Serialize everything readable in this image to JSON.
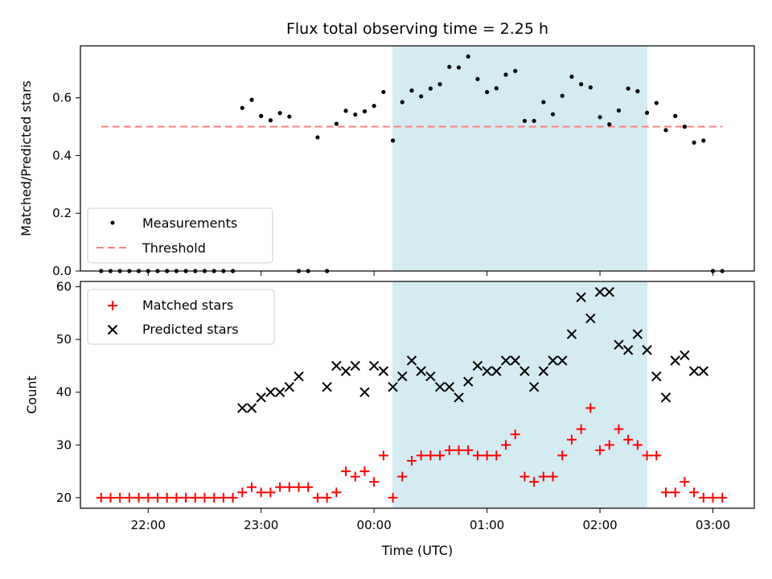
{
  "title": "Flux total observing time = 2.25 h",
  "colors": {
    "shade": "#add8e6",
    "measurements": "#000000",
    "threshold": "#ff7f7f",
    "matched": "#ff0000",
    "predicted": "#000000"
  },
  "chart_data": [
    {
      "type": "scatter",
      "panel": "top",
      "ylabel": "Matched/Predicted stars",
      "xlim": [
        "21:24",
        "03:22"
      ],
      "ylim": [
        0,
        0.78
      ],
      "yticks": [
        "0.0",
        "0.2",
        "0.4",
        "0.6"
      ],
      "shaded_span": [
        "00:10",
        "02:25"
      ],
      "legend": {
        "placement": "lower-left",
        "entries": [
          "Measurements",
          "Threshold"
        ]
      },
      "threshold": {
        "name": "Threshold",
        "value": 0.5,
        "x_range": [
          "21:35",
          "03:05"
        ]
      },
      "series": [
        {
          "name": "Measurements",
          "x": [
            "21:35",
            "21:40",
            "21:45",
            "21:50",
            "21:55",
            "22:00",
            "22:05",
            "22:10",
            "22:15",
            "22:20",
            "22:25",
            "22:30",
            "22:35",
            "22:40",
            "22:45",
            "22:50",
            "22:55",
            "23:00",
            "23:05",
            "23:10",
            "23:15",
            "23:20",
            "23:25",
            "23:30",
            "23:35",
            "23:40",
            "23:45",
            "23:50",
            "23:55",
            "24:00",
            "24:05",
            "24:10",
            "24:15",
            "24:20",
            "24:25",
            "24:30",
            "24:35",
            "24:40",
            "24:45",
            "24:50",
            "24:55",
            "25:00",
            "25:05",
            "25:10",
            "25:15",
            "25:20",
            "25:25",
            "25:30",
            "25:35",
            "25:40",
            "25:45",
            "25:50",
            "25:55",
            "26:00",
            "26:05",
            "26:10",
            "26:15",
            "26:20",
            "26:25",
            "26:30",
            "26:35",
            "26:40",
            "26:45",
            "26:50",
            "26:55",
            "27:00",
            "27:05"
          ],
          "y": [
            0,
            0,
            0,
            0,
            0,
            0,
            0,
            0,
            0,
            0,
            0,
            0,
            0,
            0,
            0,
            0.565,
            0.593,
            0.537,
            0.522,
            0.547,
            0.535,
            0,
            0,
            0.463,
            0,
            0.51,
            0.555,
            0.542,
            0.553,
            0.572,
            0.62,
            0.452,
            0.585,
            0.625,
            0.605,
            0.632,
            0.647,
            0.707,
            0.705,
            0.743,
            0.665,
            0.62,
            0.633,
            0.68,
            0.693,
            0.52,
            0.52,
            0.585,
            0.543,
            0.607,
            0.673,
            0.647,
            0.636,
            0.533,
            0.508,
            0.556,
            0.632,
            0.623,
            0.548,
            0.582,
            0.488,
            0.537,
            0.5,
            0.445,
            0.452,
            0,
            0
          ]
        }
      ]
    },
    {
      "type": "scatter",
      "panel": "bottom",
      "xlabel": "Time (UTC)",
      "ylabel": "Count",
      "xlim": [
        "21:24",
        "03:22"
      ],
      "ylim": [
        18,
        61
      ],
      "xticks": [
        "22:00",
        "23:00",
        "00:00",
        "01:00",
        "02:00",
        "03:00"
      ],
      "yticks": [
        "20",
        "30",
        "40",
        "50",
        "60"
      ],
      "shaded_span": [
        "00:10",
        "02:25"
      ],
      "legend": {
        "placement": "upper-left",
        "entries": [
          "Matched stars",
          "Predicted stars"
        ]
      },
      "series": [
        {
          "name": "Matched stars",
          "x": [
            "21:35",
            "21:40",
            "21:45",
            "21:50",
            "21:55",
            "22:00",
            "22:05",
            "22:10",
            "22:15",
            "22:20",
            "22:25",
            "22:30",
            "22:35",
            "22:40",
            "22:45",
            "22:50",
            "22:55",
            "23:00",
            "23:05",
            "23:10",
            "23:15",
            "23:20",
            "23:25",
            "23:30",
            "23:35",
            "23:40",
            "23:45",
            "23:50",
            "23:55",
            "24:00",
            "24:05",
            "24:10",
            "24:15",
            "24:20",
            "24:25",
            "24:30",
            "24:35",
            "24:40",
            "24:45",
            "24:50",
            "24:55",
            "25:00",
            "25:05",
            "25:10",
            "25:15",
            "25:20",
            "25:25",
            "25:30",
            "25:35",
            "25:40",
            "25:45",
            "25:50",
            "25:55",
            "26:00",
            "26:05",
            "26:10",
            "26:15",
            "26:20",
            "26:25",
            "26:30",
            "26:35",
            "26:40",
            "26:45",
            "26:50",
            "26:55",
            "27:00",
            "27:05"
          ],
          "y": [
            20,
            20,
            20,
            20,
            20,
            20,
            20,
            20,
            20,
            20,
            20,
            20,
            20,
            20,
            20,
            21,
            22,
            21,
            21,
            22,
            22,
            22,
            22,
            20,
            20,
            21,
            25,
            24,
            25,
            23,
            28,
            20,
            24,
            27,
            28,
            28,
            28,
            29,
            29,
            29,
            28,
            28,
            28,
            30,
            32,
            24,
            23,
            24,
            24,
            28,
            31,
            33,
            37,
            29,
            30,
            33,
            31,
            30,
            28,
            28,
            21,
            21,
            23,
            21,
            20,
            20,
            20
          ]
        },
        {
          "name": "Predicted stars",
          "x": [
            "22:50",
            "22:55",
            "23:00",
            "23:05",
            "23:10",
            "23:15",
            "23:20",
            "23:35",
            "23:40",
            "23:45",
            "23:50",
            "23:55",
            "24:00",
            "24:05",
            "24:10",
            "24:15",
            "24:20",
            "24:25",
            "24:30",
            "24:35",
            "24:40",
            "24:45",
            "24:50",
            "24:55",
            "25:00",
            "25:05",
            "25:10",
            "25:15",
            "25:20",
            "25:25",
            "25:30",
            "25:35",
            "25:40",
            "25:45",
            "25:50",
            "25:55",
            "26:00",
            "26:05",
            "26:10",
            "26:15",
            "26:20",
            "26:25",
            "26:30",
            "26:35",
            "26:40",
            "26:45",
            "26:50",
            "26:55"
          ],
          "y": [
            37,
            37,
            39,
            40,
            40,
            41,
            43,
            41,
            45,
            44,
            45,
            40,
            45,
            44,
            41,
            43,
            46,
            44,
            43,
            41,
            41,
            39,
            42,
            45,
            44,
            44,
            46,
            46,
            44,
            41,
            44,
            46,
            46,
            51,
            58,
            54,
            59,
            59,
            49,
            48,
            51,
            48,
            43,
            39,
            46,
            47,
            44,
            44
          ]
        }
      ]
    }
  ]
}
